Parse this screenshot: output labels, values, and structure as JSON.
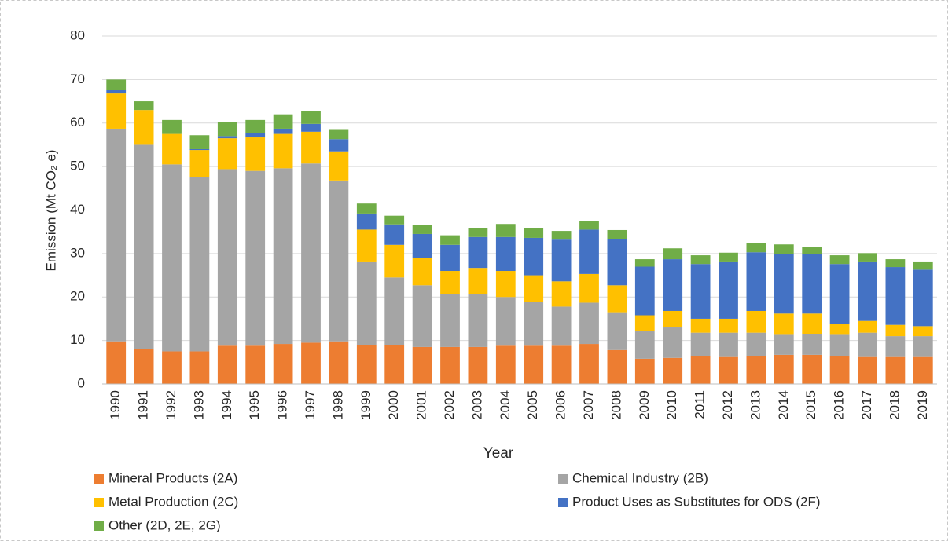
{
  "chart_data": {
    "type": "stacked_bar",
    "y_label": "Emission (Mt CO₂ e)",
    "x_label": "Year",
    "categories": [
      "1990",
      "1991",
      "1992",
      "1993",
      "1994",
      "1995",
      "1996",
      "1997",
      "1998",
      "1999",
      "2000",
      "2001",
      "2002",
      "2003",
      "2004",
      "2005",
      "2006",
      "2007",
      "2008",
      "2009",
      "2010",
      "2011",
      "2012",
      "2013",
      "2014",
      "2015",
      "2016",
      "2017",
      "2018",
      "2019"
    ],
    "series": [
      {
        "name": "Mineral Products (2A)",
        "color": "#ED7D31",
        "values": [
          9.8,
          8.0,
          7.5,
          7.5,
          8.8,
          8.8,
          9.2,
          9.5,
          9.8,
          9.0,
          9.0,
          8.5,
          8.5,
          8.5,
          8.8,
          8.8,
          8.8,
          9.2,
          7.8,
          5.8,
          6.0,
          6.5,
          6.2,
          6.4,
          6.7,
          6.7,
          6.5,
          6.2,
          6.2,
          6.2
        ]
      },
      {
        "name": "Chemical Industry (2B)",
        "color": "#A5A5A5",
        "values": [
          48.9,
          47.0,
          43.0,
          40.0,
          40.6,
          40.2,
          40.4,
          41.2,
          37.0,
          19.0,
          15.5,
          14.2,
          12.2,
          12.2,
          11.2,
          10.0,
          9.0,
          9.5,
          8.7,
          6.4,
          7.0,
          5.3,
          5.6,
          5.4,
          4.6,
          4.8,
          4.8,
          5.6,
          4.8,
          4.8
        ]
      },
      {
        "name": "Metal Production (2C)",
        "color": "#FFC000",
        "values": [
          8.1,
          8.0,
          7.0,
          6.3,
          7.1,
          7.7,
          7.9,
          7.3,
          6.7,
          7.5,
          7.5,
          6.3,
          5.3,
          6.0,
          6.0,
          6.2,
          5.8,
          6.6,
          6.2,
          3.6,
          3.8,
          3.2,
          3.2,
          5.0,
          4.9,
          4.7,
          2.5,
          2.7,
          2.6,
          2.3
        ]
      },
      {
        "name": "Product Uses as Substitutes for ODS (2F)",
        "color": "#4472C4",
        "values": [
          0.9,
          0,
          0,
          0.2,
          0.5,
          1.0,
          1.2,
          1.8,
          2.8,
          3.7,
          4.7,
          5.5,
          6.0,
          7.1,
          7.8,
          8.6,
          9.6,
          10.2,
          10.7,
          11.2,
          11.9,
          12.6,
          13.0,
          13.5,
          13.7,
          13.7,
          13.8,
          13.5,
          13.3,
          13.0
        ]
      },
      {
        "name": "Other (2D, 2E, 2G)",
        "color": "#70AD47",
        "values": [
          2.3,
          2.0,
          3.2,
          3.2,
          3.2,
          3.0,
          3.3,
          3.0,
          2.3,
          2.3,
          2.0,
          2.1,
          2.2,
          2.1,
          3.0,
          2.3,
          2.0,
          2.0,
          2.0,
          1.7,
          2.5,
          2.0,
          2.2,
          2.1,
          2.2,
          1.7,
          2.0,
          2.1,
          1.8,
          1.7
        ]
      }
    ],
    "ylim": [
      0,
      80
    ],
    "yticks": [
      0,
      10,
      20,
      30,
      40,
      50,
      60,
      70,
      80
    ],
    "grid": true
  }
}
